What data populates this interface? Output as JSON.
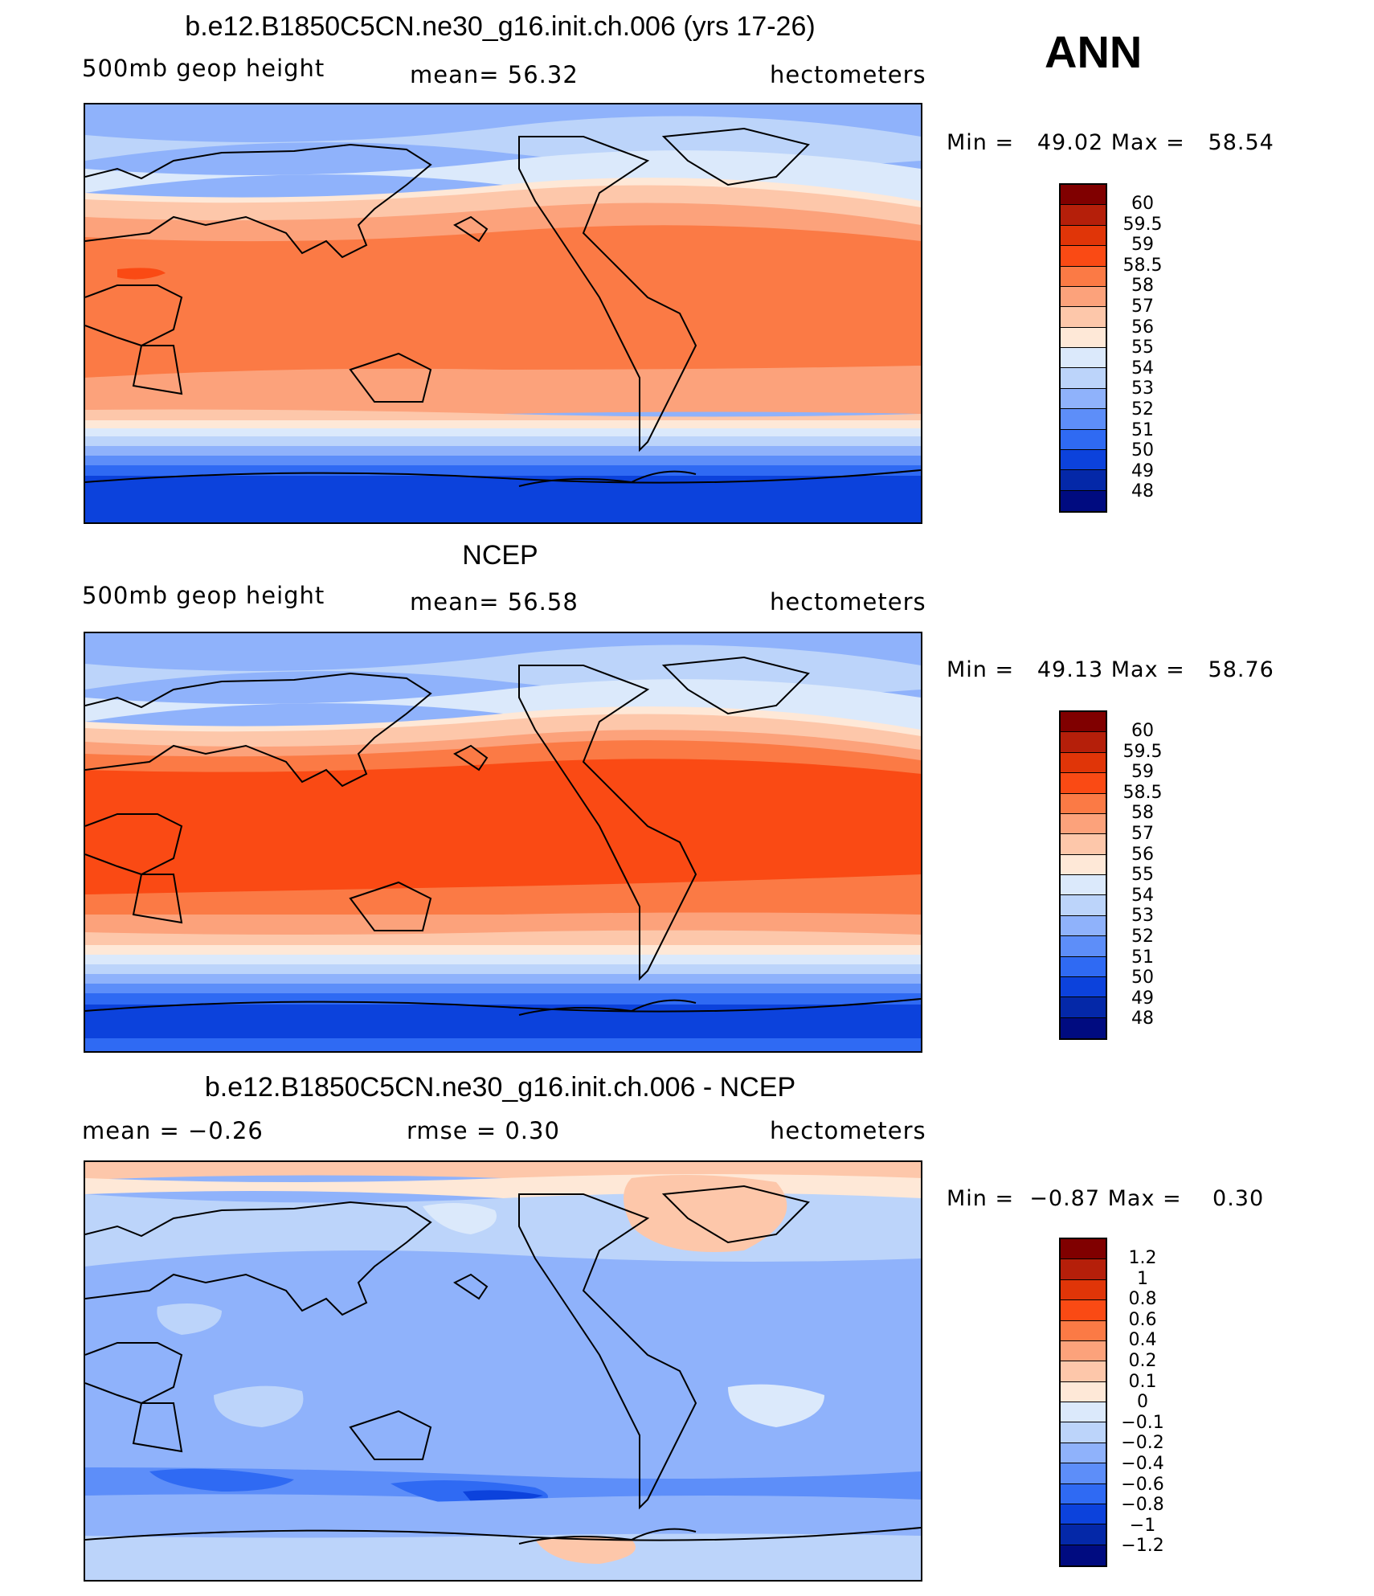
{
  "season": "ANN",
  "panels": [
    {
      "title": "b.e12.B1850C5CN.ne30_g16.init.ch.006 (yrs 17-26)",
      "left": "500mb geop height",
      "center": "mean=  56.32",
      "units": "hectometers",
      "min_label": "Min =",
      "min_value": "49.02",
      "max_label": "Max =",
      "max_value": "58.54",
      "field": {
        "type": "contour-fill",
        "description_values_by_latitude_band_from_north": [
          51.5,
          52.5,
          53.5,
          55.5,
          56.5,
          57.5,
          58.25,
          58.25,
          58.25,
          58.25,
          57.5,
          56.5,
          55.5,
          54.5,
          53.5,
          52.5,
          51.5,
          50.5,
          49.5,
          49.5,
          49.5
        ]
      }
    },
    {
      "title": "NCEP",
      "left": "500mb geop height",
      "center": "mean=  56.58",
      "units": "hectometers",
      "min_label": "Min =",
      "min_value": "49.13",
      "max_label": "Max =",
      "max_value": "58.76",
      "field": {
        "type": "contour-fill",
        "description_values_by_latitude_band_from_north": [
          51.5,
          52.5,
          53.5,
          55.5,
          56.5,
          57.5,
          58.25,
          58.75,
          58.75,
          58.75,
          58.25,
          57.5,
          56.5,
          55.5,
          54.5,
          53.5,
          52.5,
          51.5,
          50.5,
          49.5,
          49.5
        ]
      }
    },
    {
      "title": "b.e12.B1850C5CN.ne30_g16.init.ch.006 - NCEP",
      "left": "mean =   −0.26",
      "center": "rmse =    0.30",
      "units": "hectometers",
      "min_label": "Min =",
      "min_value": "−0.87",
      "max_label": "Max =",
      "max_value": "0.30",
      "field": {
        "type": "contour-fill",
        "description_values_by_latitude_band_from_north": [
          0.15,
          -0.05,
          -0.15,
          -0.15,
          -0.3,
          -0.3,
          -0.3,
          -0.3,
          -0.3,
          -0.3,
          -0.3,
          -0.3,
          -0.5,
          -0.3,
          -0.5,
          -0.3,
          -0.3,
          -0.3,
          -0.15,
          0.05,
          -0.15
        ]
      }
    }
  ],
  "legend_abs": {
    "labels": [
      "60",
      "59.5",
      "59",
      "58.5",
      "58",
      "57",
      "56",
      "55",
      "54",
      "53",
      "52",
      "51",
      "50",
      "49",
      "48"
    ],
    "colors": [
      "#800000",
      "#b51f0a",
      "#e03508",
      "#fa4a14",
      "#fb7a45",
      "#fca27b",
      "#fdc7aa",
      "#fee8d7",
      "#dbe9fb",
      "#bcd4fa",
      "#8fb2fb",
      "#5d8ef9",
      "#2f6af3",
      "#0c42dc",
      "#0428a8",
      "#000b80"
    ]
  },
  "legend_diff": {
    "labels": [
      "1.2",
      "1",
      "0.8",
      "0.6",
      "0.4",
      "0.2",
      "0.1",
      "0",
      "−0.1",
      "−0.2",
      "−0.4",
      "−0.6",
      "−0.8",
      "−1",
      "−1.2"
    ],
    "colors": [
      "#800000",
      "#b51f0a",
      "#e03508",
      "#fa4a14",
      "#fb7a45",
      "#fca27b",
      "#fdc7aa",
      "#fee8d7",
      "#dbe9fb",
      "#bcd4fa",
      "#8fb2fb",
      "#5d8ef9",
      "#2f6af3",
      "#0c42dc",
      "#0428a8",
      "#000b80"
    ]
  }
}
